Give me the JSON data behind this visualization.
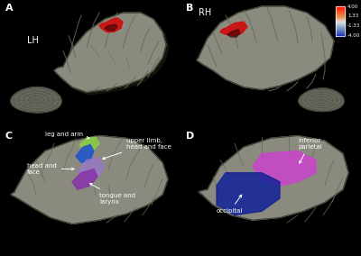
{
  "background_color": "#000000",
  "panel_label_color": "white",
  "panel_label_fontsize": 8,
  "panel_labels": [
    "A",
    "B",
    "C",
    "D"
  ],
  "lh_label": "LH",
  "rh_label": "RH",
  "colorbar_ticks": [
    "4.00",
    "1.33",
    "-1.33",
    "-4.00"
  ],
  "panel_C_labels": {
    "leg_and_arm": "leg and arm",
    "upper_limb": "upper limb,\nhead and face",
    "head_and_face": "head and\nface",
    "tongue_larynx": "tongue and\nlarynx"
  },
  "panel_D_labels": {
    "inferior_parietal": "inferior\nparietal",
    "occipital": "occipital"
  },
  "brain_fill": "#8a8a7e",
  "brain_edge": "#3a3a2e",
  "brain_shadow": "#555545",
  "gyri_color": "#6a6a5a",
  "region_red": "#cc1111",
  "region_green": "#88cc44",
  "region_blue": "#2255cc",
  "region_light_purple": "#9977cc",
  "region_dark_purple": "#8833aa",
  "region_magenta": "#cc44cc",
  "region_dark_blue": "#112299"
}
